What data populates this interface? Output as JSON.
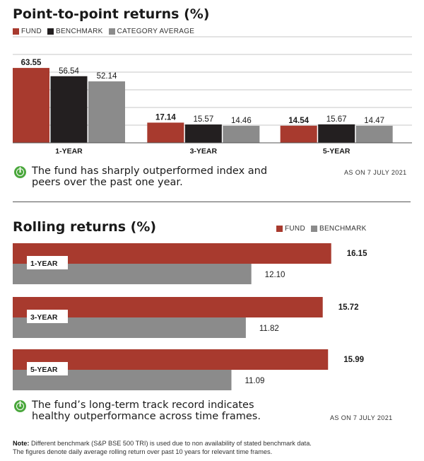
{
  "colors": {
    "fund": "#a83a2e",
    "benchmark": "#231f20",
    "category": "#8b8b8b",
    "info_icon": "#4aa73c"
  },
  "p2p": {
    "title": "Point-to-point returns (%)",
    "legend": [
      "FUND",
      "BENCHMARK",
      "CATEGORY AVERAGE"
    ],
    "note": "The fund has sharply outperformed index and peers over the past one year.",
    "as_of": "AS ON 7 JULY 2021"
  },
  "rolling": {
    "title": "Rolling returns (%)",
    "legend": [
      "FUND",
      "BENCHMARK"
    ],
    "note": "The fund’s long-term track record indicates healthy outperformance across time frames.",
    "as_of": "AS ON 7 JULY 2021"
  },
  "footnote": {
    "label": "Note:",
    "line1": "Different benchmark (S&P BSE 500 TRI) is used due to non availability of stated benchmark data.",
    "line2": "The figures denote daily average rolling return over past 10 years for relevant time frames."
  },
  "chart_data": [
    {
      "type": "bar",
      "title": "Point-to-point returns (%)",
      "categories": [
        "1-YEAR",
        "3-YEAR",
        "5-YEAR"
      ],
      "series": [
        {
          "name": "FUND",
          "values": [
            63.55,
            17.14,
            14.54
          ]
        },
        {
          "name": "BENCHMARK",
          "values": [
            56.54,
            15.57,
            15.67
          ]
        },
        {
          "name": "CATEGORY AVERAGE",
          "values": [
            52.14,
            14.46,
            14.47
          ]
        }
      ],
      "ylim": [
        0,
        90
      ],
      "grid": true,
      "legend": "top-left"
    },
    {
      "type": "bar",
      "orientation": "horizontal",
      "title": "Rolling returns (%)",
      "categories": [
        "1-YEAR",
        "3-YEAR",
        "5-YEAR"
      ],
      "series": [
        {
          "name": "FUND",
          "values": [
            16.15,
            15.72,
            15.99
          ]
        },
        {
          "name": "BENCHMARK",
          "values": [
            12.1,
            11.82,
            11.09
          ]
        }
      ],
      "xlim": [
        0,
        17.2
      ],
      "grid": false,
      "legend": "top-right"
    }
  ]
}
